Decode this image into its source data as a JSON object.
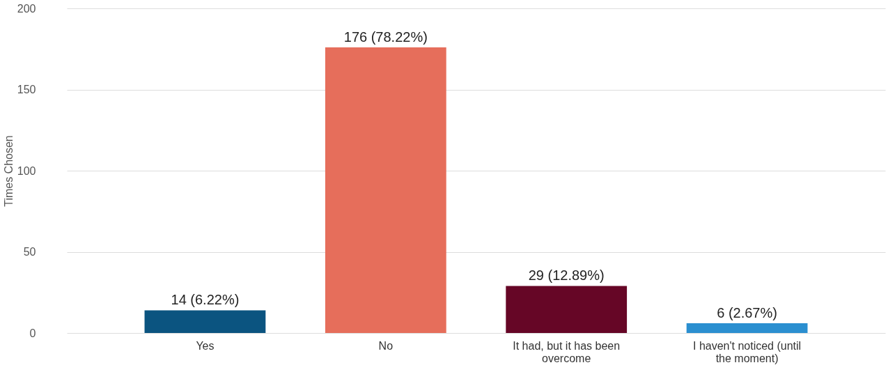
{
  "chart_data": {
    "type": "bar",
    "ylabel": "Times Chosen",
    "categories": [
      "Yes",
      "No",
      "It had, but it has been overcome",
      "I haven't noticed (until the moment)"
    ],
    "values": [
      14,
      176,
      29,
      6
    ],
    "colors": [
      "#0b5480",
      "#e66e5b",
      "#660626",
      "#2b8fd0"
    ],
    "value_labels": [
      "14 (6.22%)",
      "176 (78.22%)",
      "29 (12.89%)",
      "6 (2.67%)"
    ],
    "ylim": [
      0,
      200
    ],
    "yticks": [
      0,
      50,
      100,
      150,
      200
    ],
    "grid": "y"
  }
}
